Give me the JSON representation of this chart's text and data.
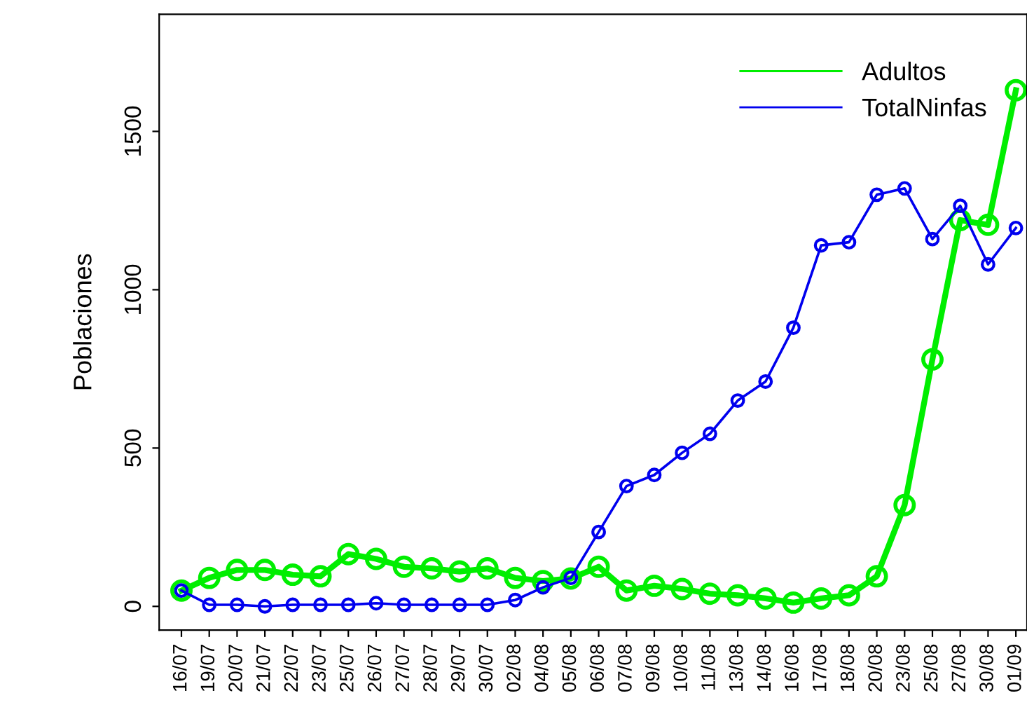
{
  "chart_data": {
    "type": "line",
    "ylabel": "Poblaciones",
    "categories": [
      "16/07",
      "19/07",
      "20/07",
      "21/07",
      "22/07",
      "23/07",
      "25/07",
      "26/07",
      "27/07",
      "28/07",
      "29/07",
      "30/07",
      "02/08",
      "04/08",
      "05/08",
      "06/08",
      "07/08",
      "09/08",
      "10/08",
      "11/08",
      "13/08",
      "14/08",
      "16/08",
      "17/08",
      "18/08",
      "20/08",
      "23/08",
      "25/08",
      "27/08",
      "30/08",
      "01/09"
    ],
    "series": [
      {
        "name": "Adultos",
        "color": "#00ee00",
        "values": [
          50,
          90,
          115,
          115,
          100,
          95,
          165,
          150,
          125,
          120,
          110,
          120,
          90,
          80,
          88,
          125,
          50,
          65,
          55,
          40,
          35,
          25,
          12,
          25,
          35,
          95,
          320,
          780,
          1220,
          1205,
          1630
        ]
      },
      {
        "name": "TotalNinfas",
        "color": "#0000ee",
        "values": [
          50,
          5,
          5,
          0,
          5,
          5,
          5,
          10,
          5,
          5,
          5,
          5,
          20,
          60,
          90,
          235,
          380,
          415,
          485,
          545,
          650,
          710,
          880,
          1140,
          1150,
          1300,
          1320,
          1160,
          1265,
          1080,
          1195
        ]
      }
    ],
    "ylim": [
      -75,
      1870
    ],
    "yticks": [
      0,
      500,
      1000,
      1500
    ],
    "grid": false,
    "legend": "top right",
    "marker": "circle",
    "line_style": "solid"
  }
}
